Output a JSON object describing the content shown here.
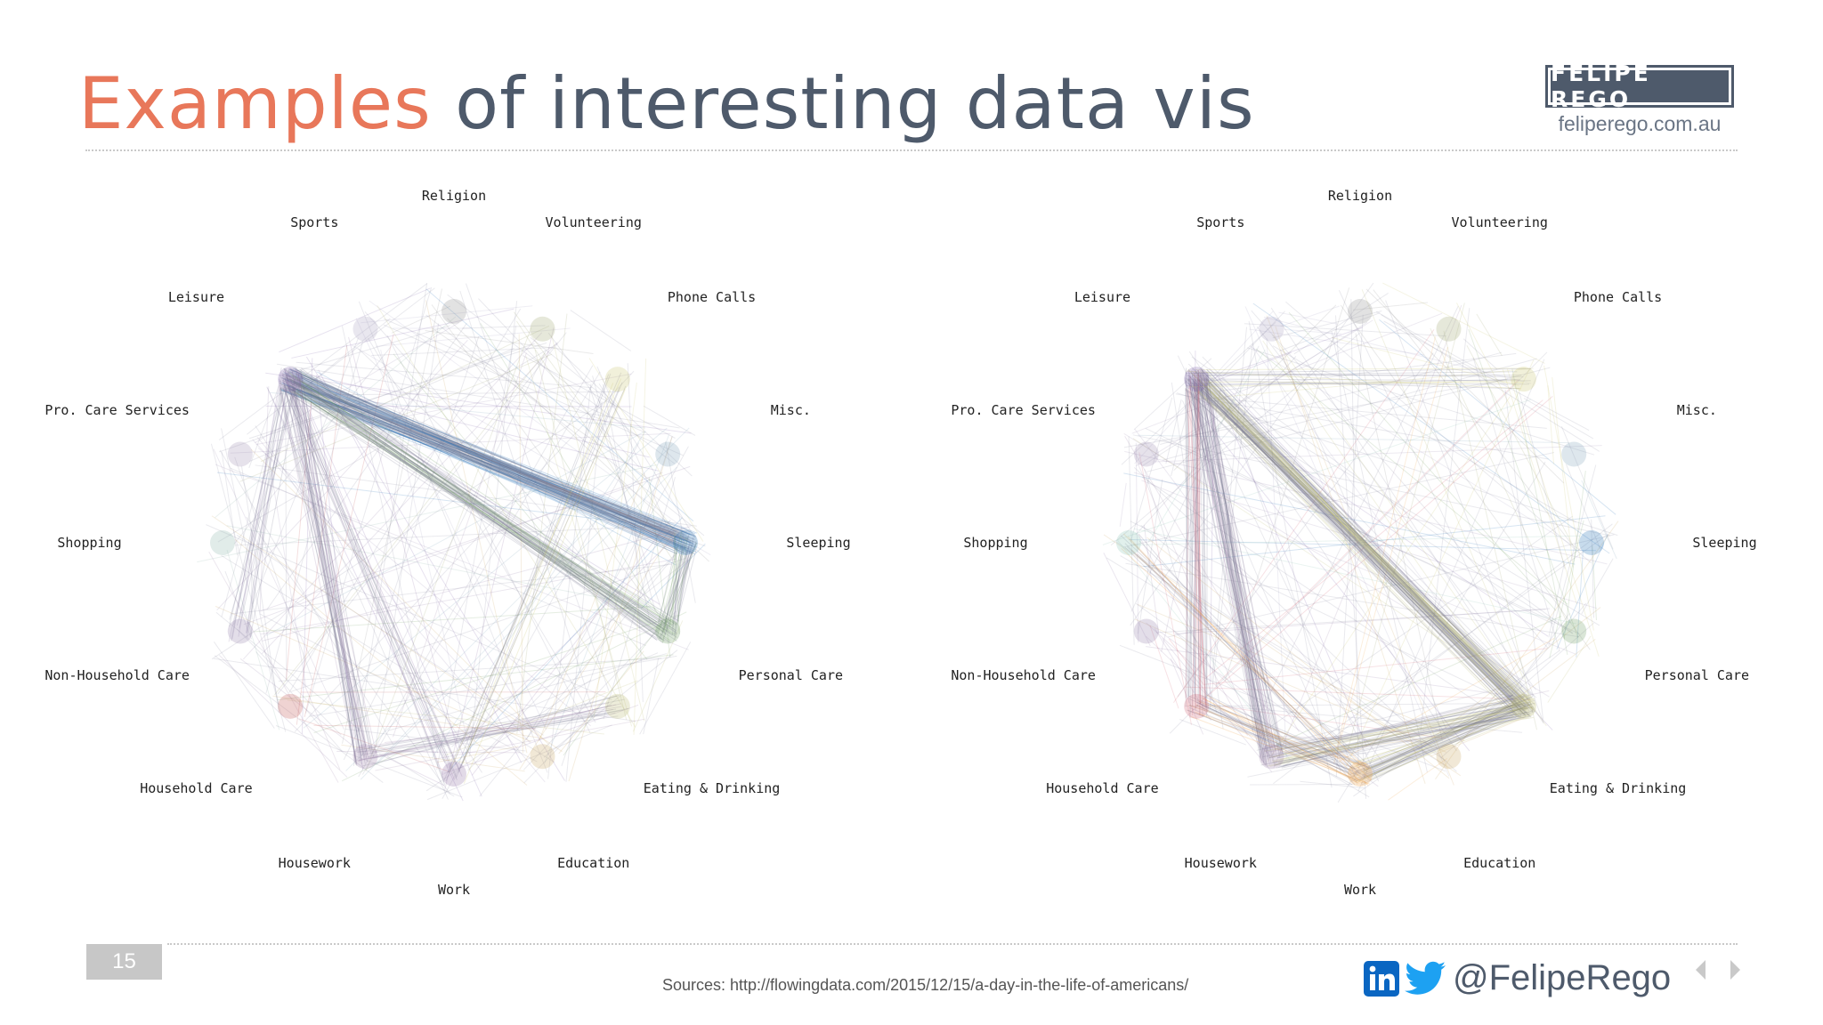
{
  "slide": {
    "title_accent": "Examples",
    "title_rest": " of interesting data vis",
    "page_number": "15",
    "sources": "Sources: http://flowingdata.com/2015/12/15/a-day-in-the-life-of-americans/",
    "handle": "@FelipeRego",
    "colors": {
      "accent": "#e8775a",
      "slate": "#4e5a6b"
    }
  },
  "brand": {
    "name": "FELIPE REGO",
    "url": "feliperego.com.au"
  },
  "social_icons": [
    "linkedin-icon",
    "twitter-icon"
  ],
  "nav": [
    "previous-slide-arrow",
    "next-slide-arrow"
  ],
  "chart_data": [
    {
      "type": "network",
      "nodes": [
        "Religion",
        "Volunteering",
        "Phone Calls",
        "Misc.",
        "Sleeping",
        "Personal Care",
        "Eating & Drinking",
        "Education",
        "Work",
        "Housework",
        "Household Care",
        "Non-Household Care",
        "Shopping",
        "Pro. Care Services",
        "Leisure",
        "Sports"
      ],
      "node_colors": [
        "#8a8a8a",
        "#9aa36a",
        "#c9c46a",
        "#7aa0b8",
        "#1f6fb5",
        "#6d9b5e",
        "#b8b86a",
        "#c9a25a",
        "#8a6a9e",
        "#9b7fa8",
        "#c0504d",
        "#8e7aa8",
        "#88b4a8",
        "#9a8db0",
        "#7b5ea7",
        "#a8a0c0"
      ],
      "flows": [
        {
          "from": "Leisure",
          "to": "Sleeping",
          "weight": 95
        },
        {
          "from": "Leisure",
          "to": "Personal Care",
          "weight": 45
        },
        {
          "from": "Leisure",
          "to": "Housework",
          "weight": 30
        },
        {
          "from": "Leisure",
          "to": "Non-Household Care",
          "weight": 15
        },
        {
          "from": "Leisure",
          "to": "Work",
          "weight": 12
        },
        {
          "from": "Sleeping",
          "to": "Personal Care",
          "weight": 30
        },
        {
          "from": "Eating & Drinking",
          "to": "Housework",
          "weight": 15
        },
        {
          "from": "Work",
          "to": "Phone Calls",
          "weight": 10
        }
      ]
    },
    {
      "type": "network",
      "nodes": [
        "Religion",
        "Volunteering",
        "Phone Calls",
        "Misc.",
        "Sleeping",
        "Personal Care",
        "Eating & Drinking",
        "Education",
        "Work",
        "Housework",
        "Household Care",
        "Non-Household Care",
        "Shopping",
        "Pro. Care Services",
        "Leisure",
        "Sports"
      ],
      "node_colors": [
        "#8a8a8a",
        "#9aa36a",
        "#c9c46a",
        "#7aa0b8",
        "#1f6fb5",
        "#6d9b5e",
        "#b8b86a",
        "#c9a25a",
        "#f0a040",
        "#9b7fa8",
        "#d06070",
        "#8e7aa8",
        "#88c4b4",
        "#9a8db0",
        "#7b5ea7",
        "#a8a0c0"
      ],
      "flows": [
        {
          "from": "Leisure",
          "to": "Eating & Drinking",
          "weight": 70
        },
        {
          "from": "Leisure",
          "to": "Housework",
          "weight": 45
        },
        {
          "from": "Leisure",
          "to": "Household Care",
          "weight": 30
        },
        {
          "from": "Work",
          "to": "Eating & Drinking",
          "weight": 40
        },
        {
          "from": "Housework",
          "to": "Eating & Drinking",
          "weight": 35
        },
        {
          "from": "Household Care",
          "to": "Work",
          "weight": 25
        },
        {
          "from": "Shopping",
          "to": "Work",
          "weight": 12
        },
        {
          "from": "Leisure",
          "to": "Phone Calls",
          "weight": 12
        }
      ]
    }
  ]
}
